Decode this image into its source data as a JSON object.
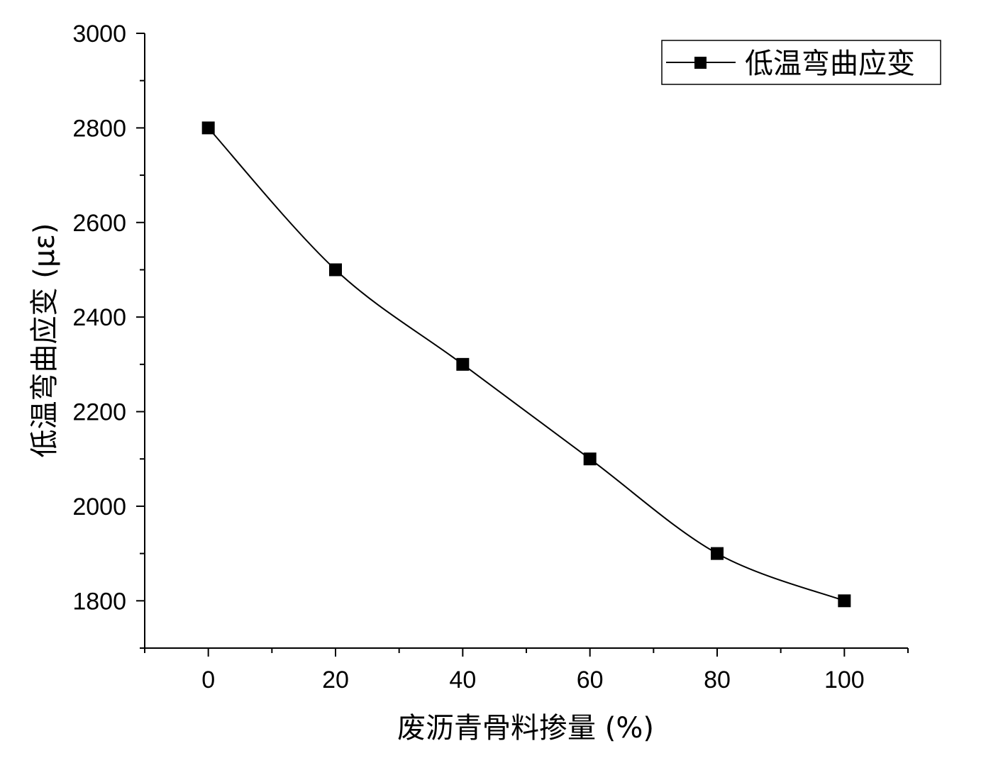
{
  "chart_data": {
    "type": "line",
    "title": "",
    "xlabel": "废沥青骨料掺量 (%)",
    "ylabel": "低温弯曲应变 (με)",
    "xlim": [
      -10,
      110
    ],
    "ylim": [
      1700,
      3000
    ],
    "xticks": [
      0,
      20,
      40,
      60,
      80,
      100
    ],
    "yticks": [
      1800,
      2000,
      2200,
      2400,
      2600,
      2800,
      3000
    ],
    "x": [
      0,
      20,
      40,
      60,
      80,
      100
    ],
    "series": [
      {
        "name": "低温弯曲应变",
        "values": [
          2800,
          2500,
          2300,
          2100,
          1900,
          1800
        ],
        "color": "#000000",
        "marker": "square",
        "smooth": true
      }
    ],
    "legend": {
      "position": "top-right"
    },
    "grid": false
  }
}
